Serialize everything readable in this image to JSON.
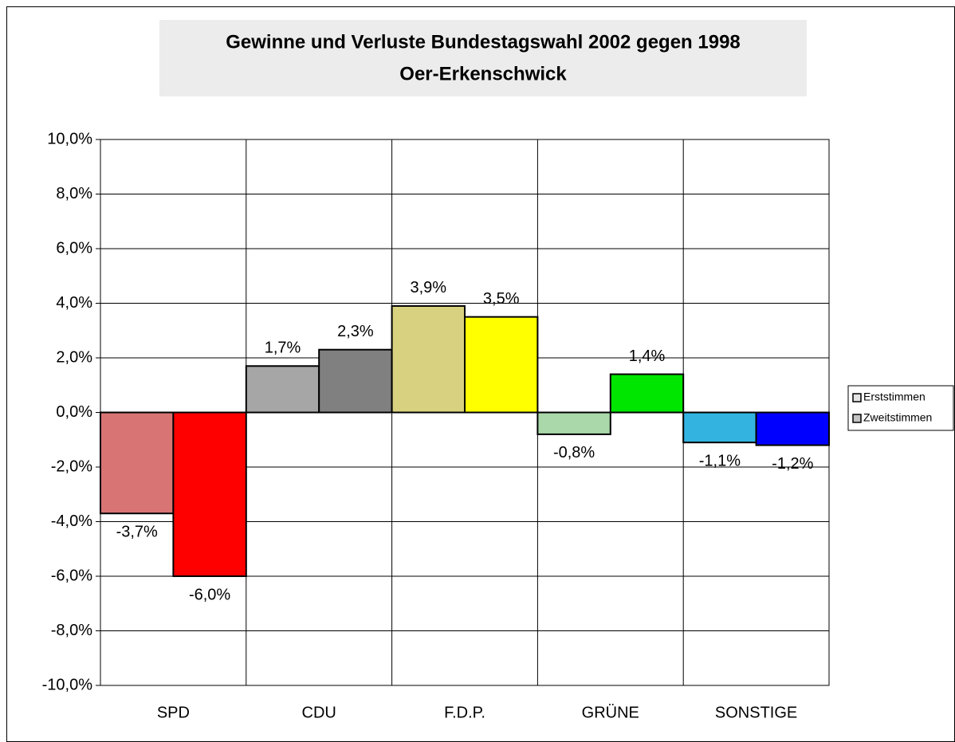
{
  "chart_data": {
    "type": "bar",
    "title": "Gewinne und Verluste Bundestagswahl 2002 gegen 1998",
    "subtitle": "Oer-Erkenschwick",
    "categories": [
      "SPD",
      "CDU",
      "F.D.P.",
      "GRÜNE",
      "SONSTIGE"
    ],
    "series": [
      {
        "name": "Erststimmen",
        "color": "#e4e4e4",
        "colors": [
          "#d87474",
          "#a6a6a6",
          "#d8d280",
          "#aad8aa",
          "#33b3e0"
        ],
        "values": [
          -3.7,
          1.7,
          3.9,
          -0.8,
          -1.1
        ],
        "value_labels": [
          "-3,7%",
          "1,7%",
          "3,9%",
          "-0,8%",
          "-1,1%"
        ]
      },
      {
        "name": "Zweitstimmen",
        "color": "#c4c4c4",
        "colors": [
          "#ff0000",
          "#808080",
          "#ffff00",
          "#00e600",
          "#0000ff"
        ],
        "values": [
          -6.0,
          2.3,
          3.5,
          1.4,
          -1.2
        ],
        "value_labels": [
          "-6,0%",
          "2,3%",
          "3,5%",
          "1,4%",
          "-1,2%"
        ]
      }
    ],
    "ylim": [
      -10,
      10
    ],
    "yticks": [
      {
        "value": -10,
        "label": "-10,0%"
      },
      {
        "value": -8,
        "label": "-8,0%"
      },
      {
        "value": -6,
        "label": "-6,0%"
      },
      {
        "value": -4,
        "label": "-4,0%"
      },
      {
        "value": -2,
        "label": "-2,0%"
      },
      {
        "value": 0,
        "label": "0,0%"
      },
      {
        "value": 2,
        "label": "2,0%"
      },
      {
        "value": 4,
        "label": "4,0%"
      },
      {
        "value": 6,
        "label": "6,0%"
      },
      {
        "value": 8,
        "label": "8,0%"
      },
      {
        "value": 10,
        "label": "10,0%"
      }
    ],
    "grid": true,
    "legend": "right"
  }
}
